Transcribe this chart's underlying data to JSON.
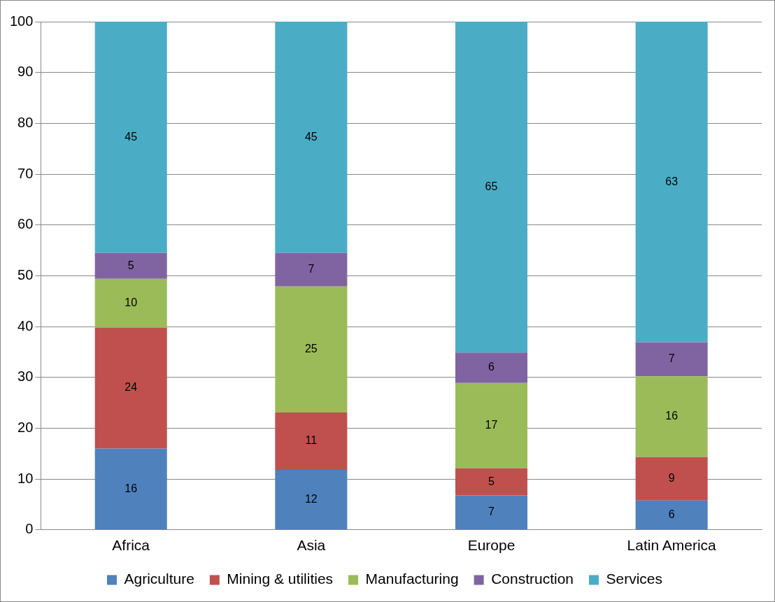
{
  "chart_data": {
    "type": "bar",
    "stacked": true,
    "categories": [
      "Africa",
      "Asia",
      "Europe",
      "Latin America"
    ],
    "series": [
      {
        "name": "Agriculture",
        "color": "#4f81bd",
        "values": [
          16.0,
          11.8,
          6.8,
          5.8
        ],
        "value_labels": [
          "16",
          "12",
          "7",
          "6"
        ]
      },
      {
        "name": "Mining & utilities",
        "color": "#c0504d",
        "values": [
          23.8,
          11.3,
          5.3,
          8.5
        ],
        "value_labels": [
          "24",
          "11",
          "5",
          "9"
        ]
      },
      {
        "name": "Manufacturing",
        "color": "#9bbb59",
        "values": [
          9.6,
          24.8,
          16.8,
          15.9
        ],
        "value_labels": [
          "10",
          "25",
          "17",
          "16"
        ]
      },
      {
        "name": "Construction",
        "color": "#8064a2",
        "values": [
          5.1,
          6.6,
          6.0,
          6.7
        ],
        "value_labels": [
          "5",
          "7",
          "6",
          "7"
        ]
      },
      {
        "name": "Services",
        "color": "#4bacc6",
        "values": [
          45.5,
          45.5,
          65.1,
          63.1
        ],
        "value_labels": [
          "45",
          "45",
          "65",
          "63"
        ]
      }
    ],
    "ylim": [
      0,
      100
    ],
    "yticks": [
      0,
      10,
      20,
      30,
      40,
      50,
      60,
      70,
      80,
      90,
      100
    ],
    "grid": "y",
    "legend": "bottom"
  }
}
